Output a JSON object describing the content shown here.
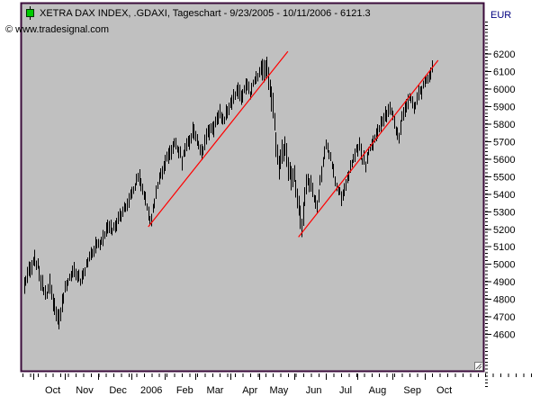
{
  "header": {
    "title": "XETRA DAX INDEX, .GDAXI, Tageschart - 9/23/2005 - 10/11/2006 - 6121.3",
    "copyright": "© www.tradesignal.com",
    "icon": "green-candlestick-icon"
  },
  "colors": {
    "page_background": "#ffffff",
    "panel_background": "#c0c0c0",
    "panel_border": "#3b0b3b",
    "bar": "#000000",
    "trendline": "#ff0000",
    "unit_label": "#000080",
    "tick": "#000000",
    "icon_green": "#00cc00"
  },
  "chart_data": {
    "type": "bar",
    "subtype": "ohlc-high-low-daily",
    "title": "XETRA DAX INDEX, .GDAXI, Tageschart - 9/23/2005 - 10/11/2006 - 6121.3",
    "symbol": ".GDAXI",
    "period_label": "Tageschart",
    "date_range": "9/23/2005 - 10/11/2006",
    "last_value": 6121.3,
    "y_axis": {
      "label": "EUR",
      "min": 4600,
      "max": 6200,
      "tick_step": 100,
      "side": "right"
    },
    "x_axis": {
      "labels": [
        "Oct",
        "Nov",
        "Dec",
        "2006",
        "Feb",
        "Mar",
        "Apr",
        "May",
        "Jun",
        "Jul",
        "Aug",
        "Sep",
        "Oct"
      ],
      "month_start_days": [
        6,
        27,
        49,
        71,
        93,
        113,
        136,
        155,
        178,
        199,
        220,
        243,
        264
      ],
      "n_days": 270
    },
    "grid": "off",
    "series_anchors": [
      [
        0,
        4880
      ],
      [
        2,
        4930
      ],
      [
        5,
        5000
      ],
      [
        7,
        5040
      ],
      [
        9,
        4980
      ],
      [
        11,
        4900
      ],
      [
        13,
        4850
      ],
      [
        15,
        4820
      ],
      [
        17,
        4890
      ],
      [
        19,
        4790
      ],
      [
        21,
        4720
      ],
      [
        23,
        4690
      ],
      [
        25,
        4760
      ],
      [
        27,
        4860
      ],
      [
        29,
        4910
      ],
      [
        31,
        4950
      ],
      [
        33,
        4970
      ],
      [
        35,
        4940
      ],
      [
        37,
        4890
      ],
      [
        39,
        4930
      ],
      [
        41,
        5000
      ],
      [
        43,
        5040
      ],
      [
        45,
        5070
      ],
      [
        47,
        5100
      ],
      [
        50,
        5130
      ],
      [
        53,
        5180
      ],
      [
        56,
        5210
      ],
      [
        58,
        5190
      ],
      [
        61,
        5240
      ],
      [
        64,
        5290
      ],
      [
        67,
        5330
      ],
      [
        70,
        5380
      ],
      [
        73,
        5450
      ],
      [
        75,
        5500
      ],
      [
        77,
        5470
      ],
      [
        79,
        5400
      ],
      [
        81,
        5330
      ],
      [
        83,
        5260
      ],
      [
        84,
        5250
      ],
      [
        86,
        5360
      ],
      [
        88,
        5450
      ],
      [
        90,
        5520
      ],
      [
        93,
        5590
      ],
      [
        96,
        5640
      ],
      [
        99,
        5680
      ],
      [
        102,
        5650
      ],
      [
        104,
        5600
      ],
      [
        106,
        5660
      ],
      [
        109,
        5710
      ],
      [
        112,
        5770
      ],
      [
        114,
        5720
      ],
      [
        116,
        5650
      ],
      [
        118,
        5660
      ],
      [
        120,
        5720
      ],
      [
        123,
        5770
      ],
      [
        126,
        5810
      ],
      [
        129,
        5860
      ],
      [
        131,
        5820
      ],
      [
        133,
        5860
      ],
      [
        136,
        5920
      ],
      [
        139,
        5970
      ],
      [
        141,
        6000
      ],
      [
        143,
        5950
      ],
      [
        145,
        5990
      ],
      [
        147,
        6030
      ],
      [
        149,
        5970
      ],
      [
        151,
        6030
      ],
      [
        153,
        6070
      ],
      [
        155,
        6100
      ],
      [
        157,
        6120
      ],
      [
        159,
        6140
      ],
      [
        161,
        6070
      ],
      [
        163,
        5950
      ],
      [
        165,
        5820
      ],
      [
        166,
        5700
      ],
      [
        168,
        5560
      ],
      [
        170,
        5620
      ],
      [
        172,
        5690
      ],
      [
        174,
        5560
      ],
      [
        176,
        5460
      ],
      [
        178,
        5520
      ],
      [
        180,
        5390
      ],
      [
        182,
        5280
      ],
      [
        183,
        5230
      ],
      [
        185,
        5390
      ],
      [
        187,
        5480
      ],
      [
        189,
        5440
      ],
      [
        191,
        5380
      ],
      [
        193,
        5340
      ],
      [
        195,
        5480
      ],
      [
        197,
        5580
      ],
      [
        199,
        5670
      ],
      [
        201,
        5640
      ],
      [
        203,
        5580
      ],
      [
        205,
        5470
      ],
      [
        207,
        5420
      ],
      [
        209,
        5380
      ],
      [
        211,
        5420
      ],
      [
        213,
        5490
      ],
      [
        215,
        5550
      ],
      [
        217,
        5600
      ],
      [
        219,
        5650
      ],
      [
        221,
        5670
      ],
      [
        223,
        5600
      ],
      [
        225,
        5570
      ],
      [
        227,
        5640
      ],
      [
        229,
        5680
      ],
      [
        231,
        5720
      ],
      [
        233,
        5750
      ],
      [
        235,
        5790
      ],
      [
        237,
        5820
      ],
      [
        239,
        5860
      ],
      [
        241,
        5880
      ],
      [
        243,
        5850
      ],
      [
        245,
        5750
      ],
      [
        247,
        5720
      ],
      [
        249,
        5820
      ],
      [
        251,
        5880
      ],
      [
        253,
        5930
      ],
      [
        255,
        5960
      ],
      [
        257,
        5900
      ],
      [
        259,
        5950
      ],
      [
        261,
        5990
      ],
      [
        263,
        6010
      ],
      [
        265,
        6040
      ],
      [
        267,
        6070
      ],
      [
        269,
        6115
      ]
    ],
    "trendlines": [
      {
        "from": [
          82,
          5214
        ],
        "to": [
          174,
          6215
        ]
      },
      {
        "from": [
          181,
          5156
        ],
        "to": [
          273,
          6164
        ]
      }
    ]
  }
}
